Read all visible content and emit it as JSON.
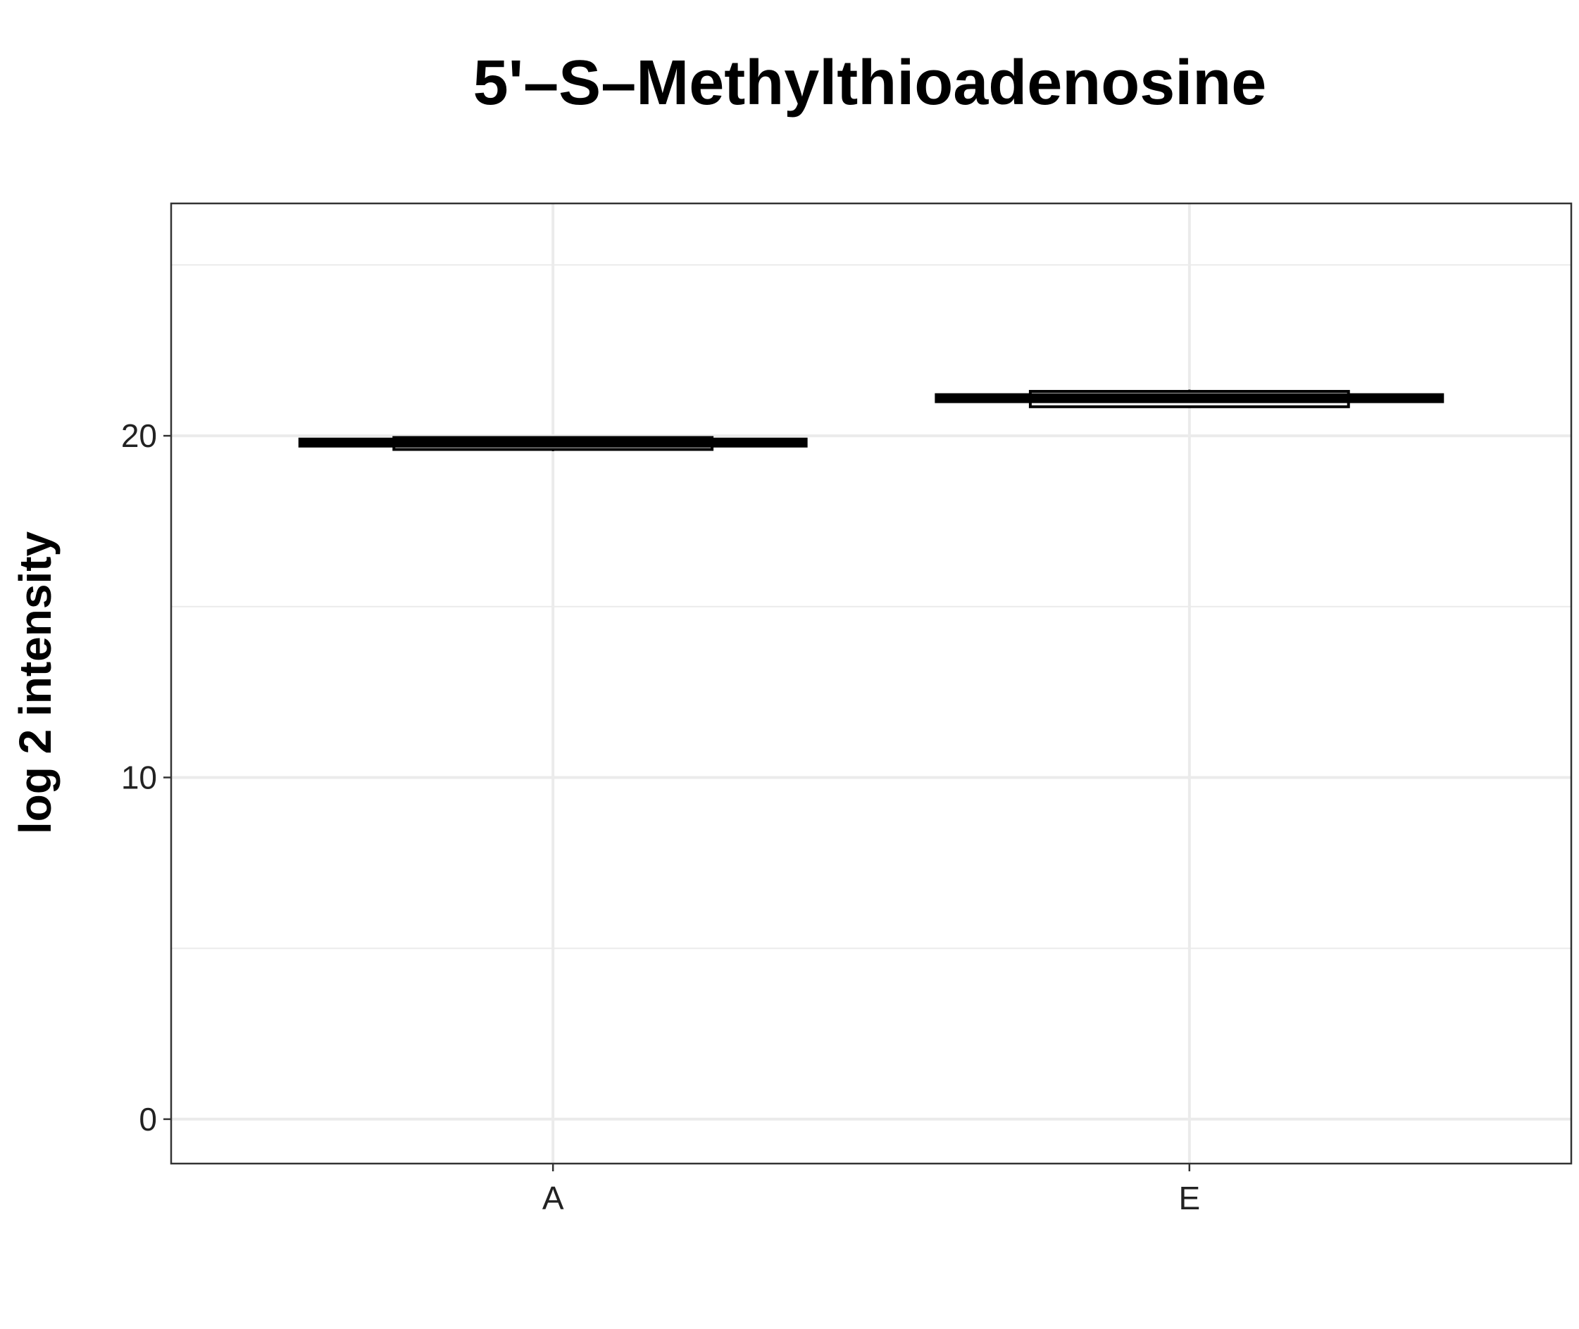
{
  "chart_data": {
    "type": "boxplot",
    "title": "5'–S–Methylthioadenosine",
    "xlabel": "",
    "ylabel": "log 2 intensity",
    "categories": [
      "A",
      "E"
    ],
    "yticks": [
      0,
      10,
      20
    ],
    "ylim": [
      -1.3,
      26.8
    ],
    "grid": true,
    "boxes": [
      {
        "category": "A",
        "lower": 19.55,
        "q1": 19.6,
        "median": 19.8,
        "q3": 19.95,
        "upper": 19.95
      },
      {
        "category": "E",
        "lower": 20.85,
        "q1": 20.85,
        "median": 21.1,
        "q3": 21.3,
        "upper": 21.35
      }
    ]
  }
}
